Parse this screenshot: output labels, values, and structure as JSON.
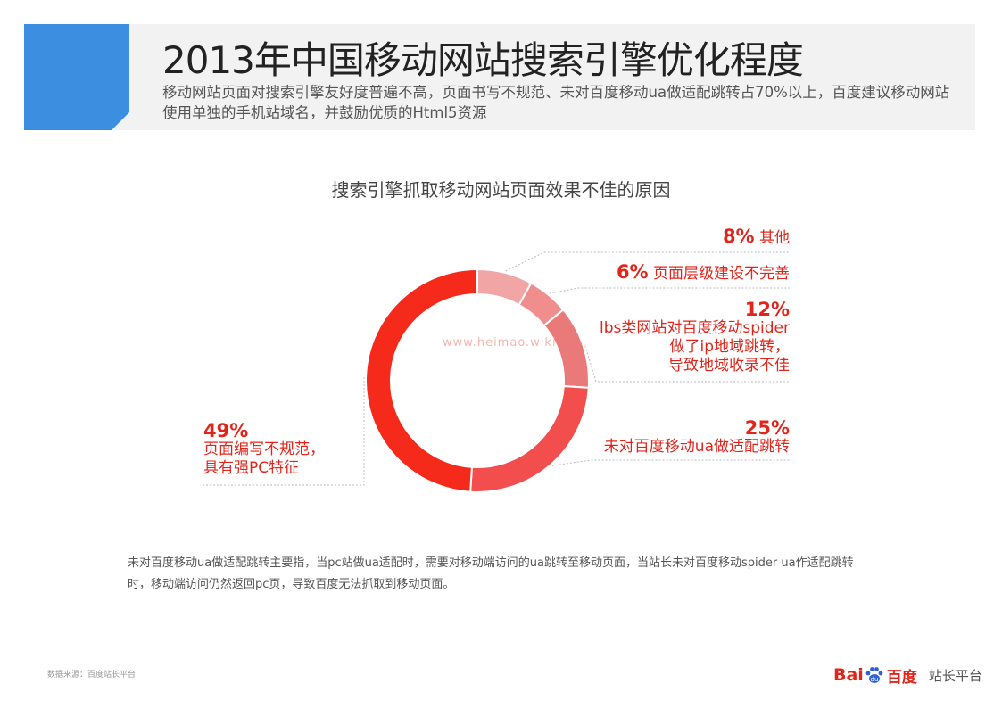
{
  "header": {
    "title": "2013年中国移动网站搜索引擎优化程度",
    "subtitle": "移动网站页面对搜索引擎友好度普遍不高，页面书写不规范、未对百度移动ua做适配跳转占70%以上，百度建议移动网站使用单独的手机站域名，并鼓励优质的Html5资源"
  },
  "chart_data": {
    "type": "pie",
    "style": "donut",
    "title": "搜索引擎抓取移动网站页面效果不佳的原因",
    "slices": [
      {
        "label": "其他",
        "value": 8,
        "pct_text": "8%",
        "color": "#f2a5a5"
      },
      {
        "label": "页面层级建设不完善",
        "value": 6,
        "pct_text": "6%",
        "color": "#f08e8e"
      },
      {
        "label": "lbs类网站对百度移动spider做了ip地域跳转，导致地域收录不佳",
        "label_lines": [
          "lbs类网站对百度移动spider",
          "做了ip地域跳转，",
          "导致地域收录不佳"
        ],
        "value": 12,
        "pct_text": "12%",
        "color": "#ea7a7a"
      },
      {
        "label": "未对百度移动ua做适配跳转",
        "value": 25,
        "pct_text": "25%",
        "color": "#f24e4e"
      },
      {
        "label": "页面编写不规范，具有强PC特征",
        "label_lines": [
          "页面编写不规范，",
          "具有强PC特征"
        ],
        "value": 49,
        "pct_text": "49%",
        "color": "#f52a1b"
      }
    ]
  },
  "note": "未对百度移动ua做适配跳转主要指，当pc站做ua适配时，需要对移动端访问的ua跳转至移动页面，当站长未对百度移动spider ua作适配跳转时，移动端访问仍然返回pc页，导致百度无法抓取到移动页面。",
  "footer": {
    "source": "数据来源：百度站长平台",
    "logo_bai": "Bai",
    "logo_cn": "百度",
    "logo_platform": "站长平台"
  },
  "watermark": "www.heimao.wiki",
  "colors": {
    "accent": "#3b8ee0",
    "label_red": "#e1251b",
    "leader_line": "#bbbbbb"
  }
}
